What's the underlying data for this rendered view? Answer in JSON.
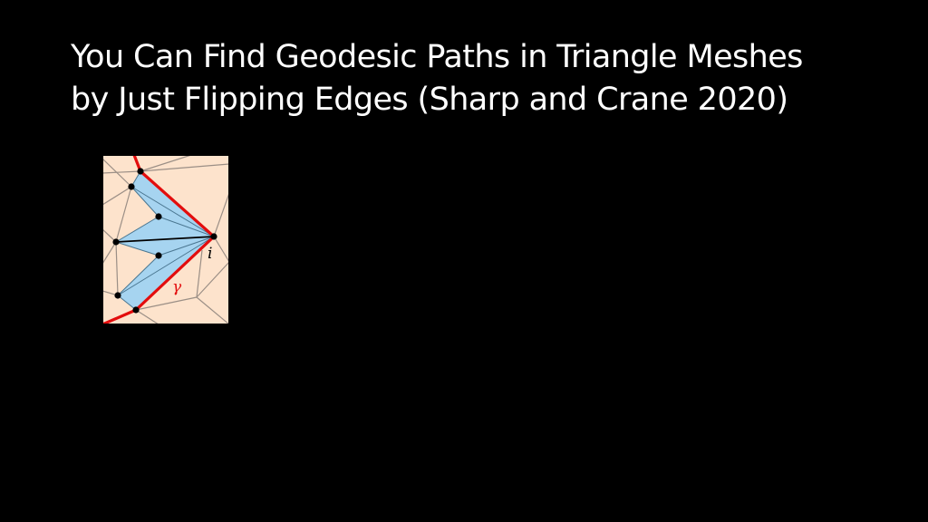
{
  "slide": {
    "title_line_1": "You Can Find Geodesic Paths in Triangle Meshes",
    "title_line_2": "by Just Flipping Edges (Sharp and Crane 2020)"
  },
  "figure": {
    "vertex_label": "i",
    "path_label": "γ",
    "colors": {
      "background": "#fde3cc",
      "wedge_fill": "#a6d4f0",
      "mesh_edge": "#9b8f86",
      "wedge_edge": "#4a7690",
      "path": "#e30d0d",
      "vertex": "#000000"
    }
  }
}
